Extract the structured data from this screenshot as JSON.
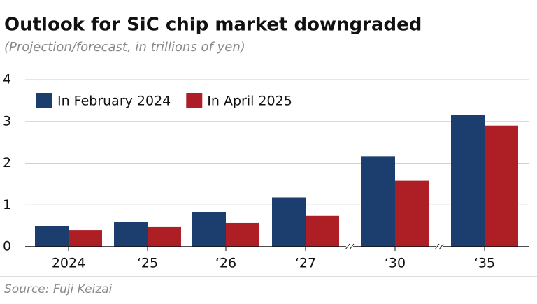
{
  "chart_data": {
    "type": "bar",
    "title": "Outlook for SiC chip market downgraded",
    "subtitle": "(Projection/forecast, in trillions of yen)",
    "source": "Source: Fuji Keizai",
    "categories": [
      "2024",
      "‘25",
      "‘26",
      "‘27",
      "‘30",
      "‘35"
    ],
    "series": [
      {
        "name": "In February 2024",
        "color": "#1b3e6f",
        "values": [
          0.5,
          0.6,
          0.83,
          1.18,
          2.17,
          3.15
        ]
      },
      {
        "name": "In April 2025",
        "color": "#ad1f24",
        "values": [
          0.4,
          0.47,
          0.57,
          0.74,
          1.58,
          2.9
        ]
      }
    ],
    "ylim": [
      0,
      4
    ],
    "yticks": [
      0,
      1,
      2,
      3,
      4
    ],
    "grid": true,
    "legend": "top-left"
  }
}
